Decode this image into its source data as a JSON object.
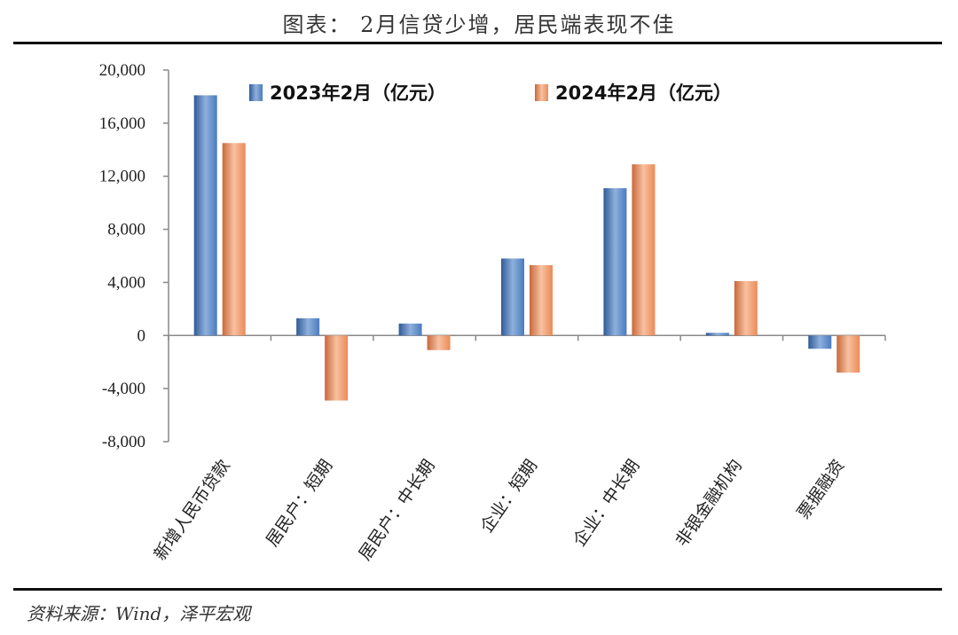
{
  "title": "图表： 2月信贷少增，居民端表现不佳",
  "source": "资料来源：Wind，泽平宏观",
  "colors": {
    "series_2023": "#4a7bbf",
    "series_2023_dark": "#2f5a98",
    "series_2023_light": "#8fb0dc",
    "series_2024": "#ec8a56",
    "series_2024_dark": "#c9683a",
    "series_2024_light": "#f7c1a1"
  },
  "chart_data": {
    "type": "bar",
    "categories": [
      "新增人民币贷款",
      "居民户：短期",
      "居民户：中长期",
      "企业：短期",
      "企业：中长期",
      "非银金融机构",
      "票据融资"
    ],
    "series": [
      {
        "name": "2023年2月（亿元）",
        "values": [
          18100,
          1300,
          900,
          5800,
          11100,
          200,
          -1000
        ]
      },
      {
        "name": "2024年2月（亿元）",
        "values": [
          14500,
          -4900,
          -1100,
          5300,
          12900,
          4100,
          -2800
        ]
      }
    ],
    "ylim": [
      -8000,
      20000
    ],
    "yticks": [
      -8000,
      -4000,
      0,
      4000,
      8000,
      12000,
      16000,
      20000
    ],
    "ytick_labels": [
      "-8,000",
      "-4,000",
      "0",
      "4,000",
      "8,000",
      "12,000",
      "16,000",
      "20,000"
    ],
    "legend_position": "top",
    "grid": false,
    "xlabel": "",
    "ylabel": ""
  }
}
